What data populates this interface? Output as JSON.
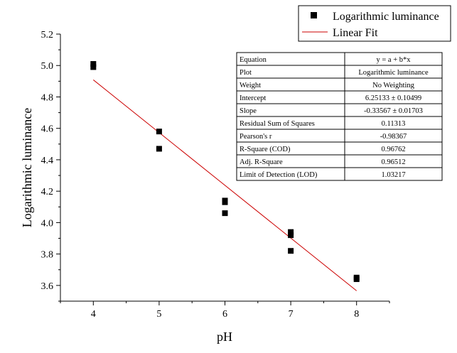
{
  "chart_data": {
    "type": "scatter",
    "xlabel": "pH",
    "ylabel": "Logarithmic luminance",
    "xlim": [
      3.5,
      8.5
    ],
    "ylim": [
      3.5,
      5.2
    ],
    "x_ticks": [
      "4",
      "5",
      "6",
      "7",
      "8"
    ],
    "y_ticks": [
      "3.6",
      "3.8",
      "4.0",
      "4.2",
      "4.4",
      "4.6",
      "4.8",
      "5.0",
      "5.2"
    ],
    "legend_position": "top-right",
    "series": [
      {
        "name": "Logarithmic luminance",
        "kind": "scatter",
        "marker": "square",
        "color": "#000000",
        "points": [
          {
            "x": 4,
            "y": 5.01
          },
          {
            "x": 4,
            "y": 4.99
          },
          {
            "x": 5,
            "y": 4.58
          },
          {
            "x": 5,
            "y": 4.47
          },
          {
            "x": 6,
            "y": 4.14
          },
          {
            "x": 6,
            "y": 4.13
          },
          {
            "x": 6,
            "y": 4.06
          },
          {
            "x": 7,
            "y": 3.94
          },
          {
            "x": 7,
            "y": 3.92
          },
          {
            "x": 7,
            "y": 3.82
          },
          {
            "x": 8,
            "y": 3.65
          },
          {
            "x": 8,
            "y": 3.64
          }
        ]
      },
      {
        "name": "Linear Fit",
        "kind": "line",
        "color": "#cc0000",
        "intercept": 6.25133,
        "slope": -0.33567,
        "x_range": [
          4,
          8
        ]
      }
    ],
    "stats_table": [
      [
        "Equation",
        "y = a + b*x"
      ],
      [
        "Plot",
        "Logarithmic luminance"
      ],
      [
        "Weight",
        "No Weighting"
      ],
      [
        "Intercept",
        "6.25133 ± 0.10499"
      ],
      [
        "Slope",
        "-0.33567 ± 0.01703"
      ],
      [
        "Residual Sum of Squares",
        "0.11313"
      ],
      [
        "Pearson's r",
        "-0.98367"
      ],
      [
        "R-Square (COD)",
        "0.96762"
      ],
      [
        "Adj. R-Square",
        "0.96512"
      ],
      [
        "Limit of Detection (LOD)",
        "1.03217"
      ]
    ]
  }
}
